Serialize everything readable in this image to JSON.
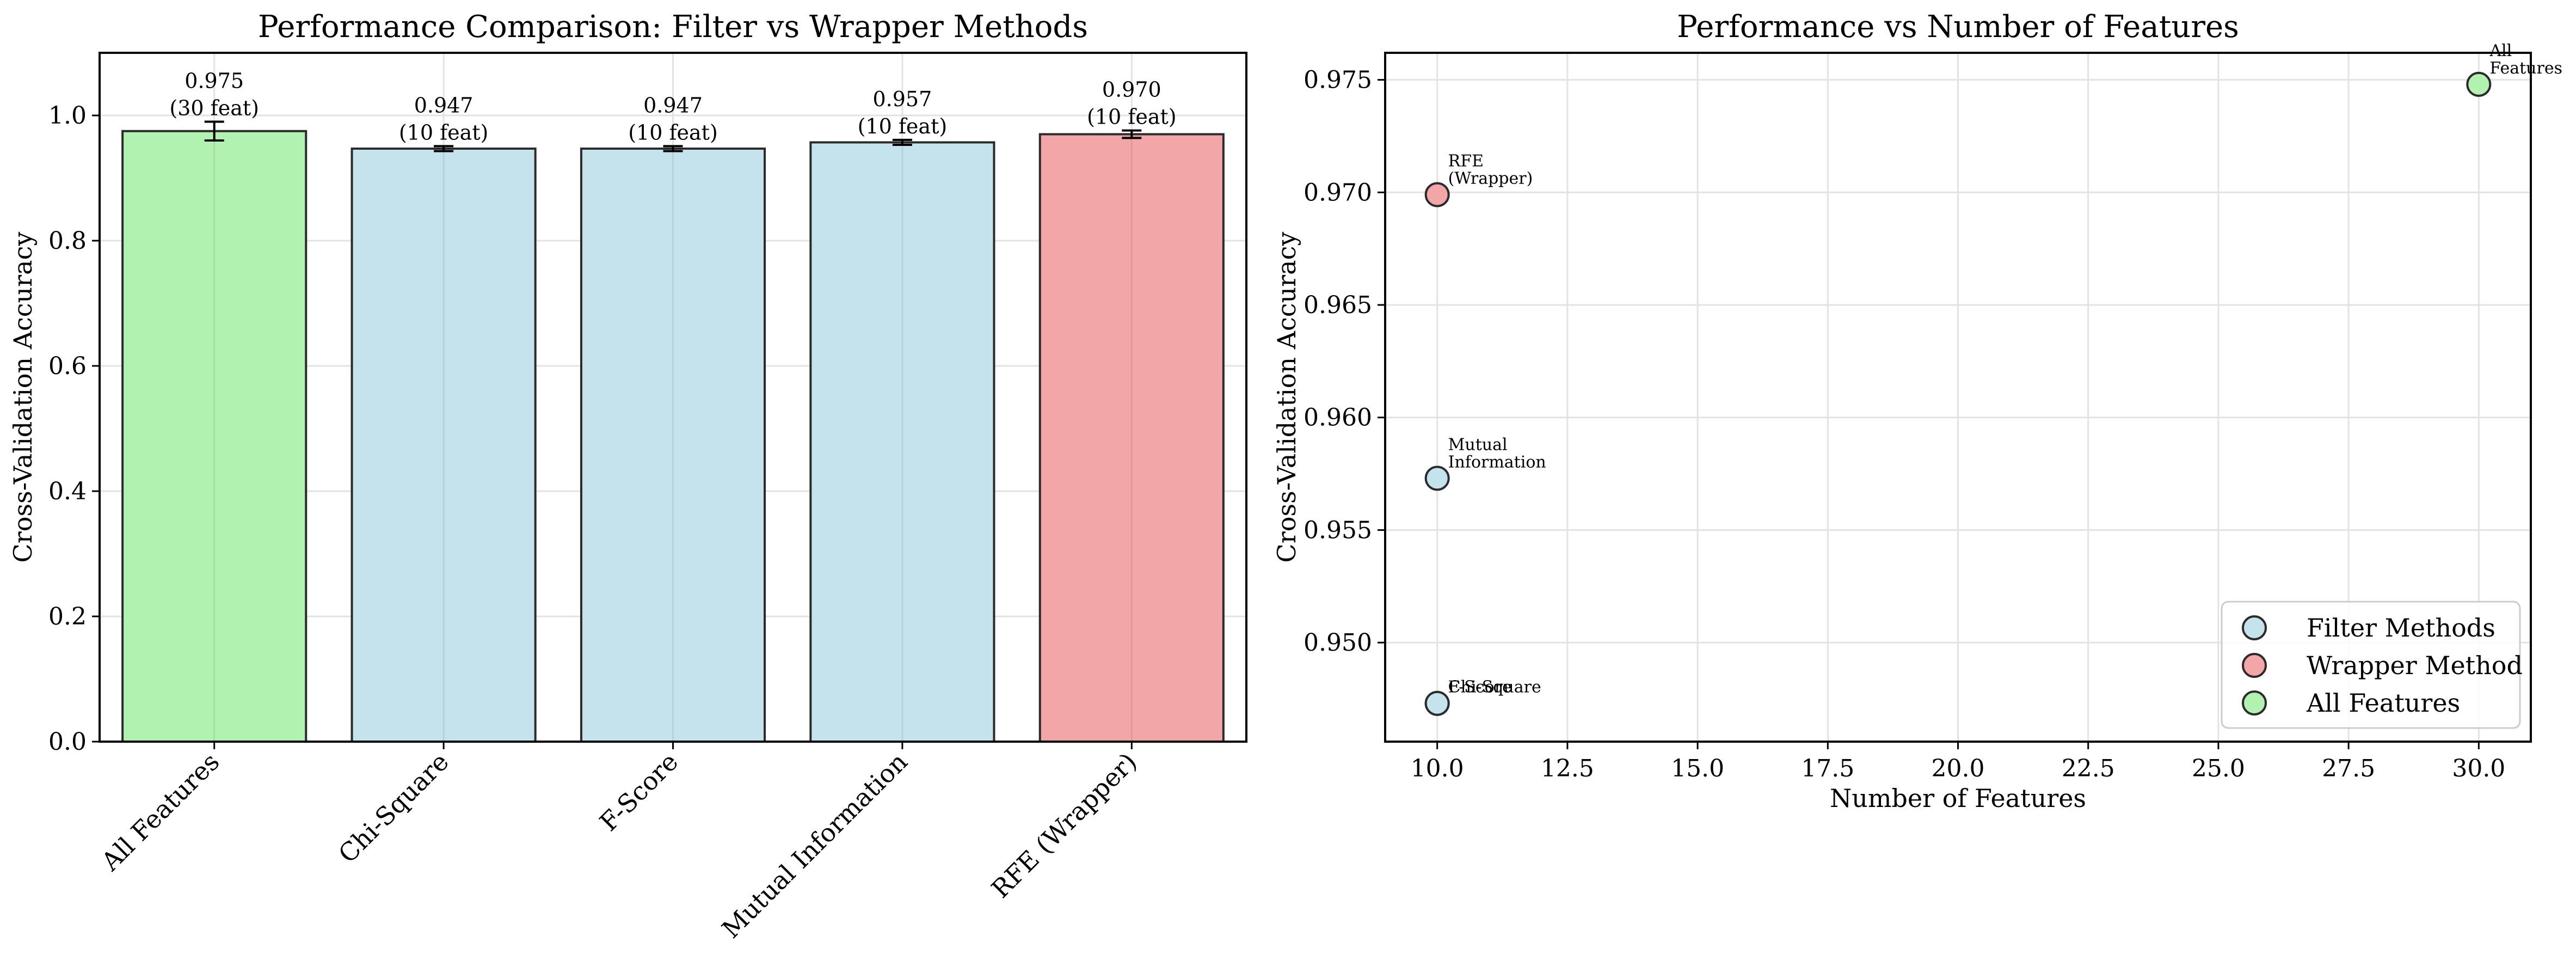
{
  "chart_data": [
    {
      "type": "bar",
      "title": "Performance Comparison: Filter vs Wrapper Methods",
      "xlabel": "",
      "ylabel": "Cross-Validation Accuracy",
      "ylim": [
        0,
        1.1
      ],
      "yticks": [
        "0.0",
        "0.2",
        "0.4",
        "0.6",
        "0.8",
        "1.0"
      ],
      "grid": true,
      "categories": [
        "All Features",
        "Chi-Square",
        "F-Score",
        "Mutual Information",
        "RFE (Wrapper)"
      ],
      "values": [
        0.975,
        0.947,
        0.947,
        0.957,
        0.97
      ],
      "errors": [
        0.015,
        0.004,
        0.004,
        0.004,
        0.006
      ],
      "bar_labels": [
        [
          "0.975",
          "(30 feat)"
        ],
        [
          "0.947",
          "(10 feat)"
        ],
        [
          "0.947",
          "(10 feat)"
        ],
        [
          "0.957",
          "(10 feat)"
        ],
        [
          "0.970",
          "(10 feat)"
        ]
      ],
      "colors": [
        "#b2f2b0",
        "#c5e3ec",
        "#c5e3ec",
        "#c5e3ec",
        "#f3a6a8"
      ]
    },
    {
      "type": "scatter",
      "title": "Performance vs Number of Features",
      "xlabel": "Number of Features",
      "ylabel": "Cross-Validation Accuracy",
      "xlim": [
        9.0,
        31.0
      ],
      "ylim": [
        0.9456,
        0.9762
      ],
      "xticks": [
        "10.0",
        "12.5",
        "15.0",
        "17.5",
        "20.0",
        "22.5",
        "25.0",
        "27.5",
        "30.0"
      ],
      "yticks": [
        "0.950",
        "0.955",
        "0.960",
        "0.965",
        "0.970",
        "0.975"
      ],
      "grid": true,
      "legend_position": "bottom-right",
      "series": [
        {
          "name": "Filter Methods",
          "color": "#c5e3ec",
          "points": [
            {
              "x": 10,
              "y": 0.9473,
              "label": [
                "Chi-Square"
              ]
            },
            {
              "x": 10,
              "y": 0.9473,
              "label": [
                "F-Score"
              ]
            },
            {
              "x": 10,
              "y": 0.9573,
              "label": [
                "Mutual",
                "Information"
              ]
            }
          ]
        },
        {
          "name": "Wrapper Method",
          "color": "#f3a6a8",
          "points": [
            {
              "x": 10,
              "y": 0.9699,
              "label": [
                "RFE",
                "(Wrapper)"
              ]
            }
          ]
        },
        {
          "name": "All Features",
          "color": "#b2f2b0",
          "points": [
            {
              "x": 30,
              "y": 0.9748,
              "label": [
                "All",
                "Features"
              ]
            }
          ]
        }
      ]
    }
  ]
}
